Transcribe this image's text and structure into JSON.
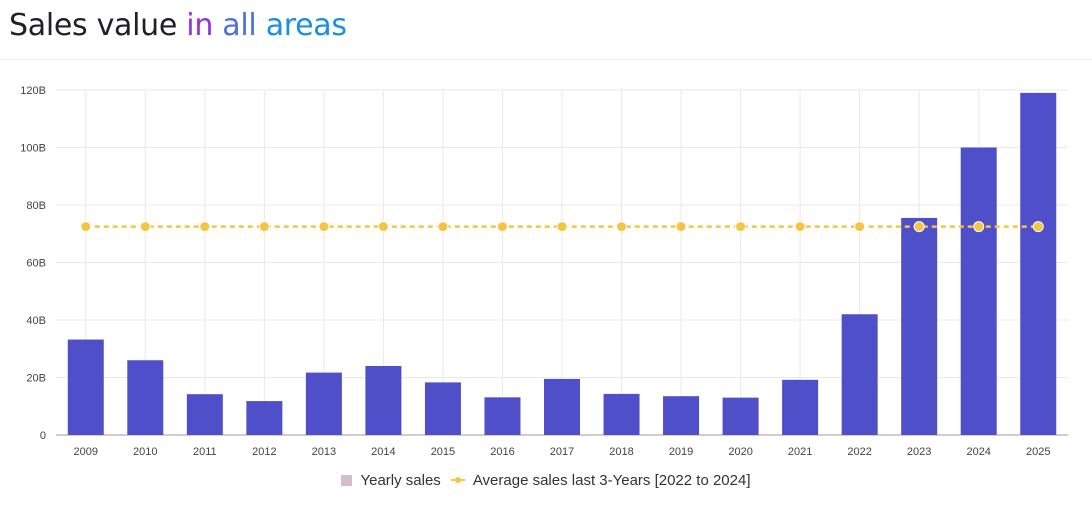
{
  "header": {
    "title_parts": [
      "Sales value",
      "in",
      "all",
      "areas"
    ]
  },
  "colors": {
    "bar": "#4f4fc9",
    "average_line": "#f4c542",
    "grid": "#e9e9e9",
    "axis": "#9e9e9e",
    "legend_bar_swatch": "#d5bccb"
  },
  "chart_data": {
    "type": "bar",
    "title": "Sales value in all areas",
    "categories": [
      "2009",
      "2010",
      "2011",
      "2012",
      "2013",
      "2014",
      "2015",
      "2016",
      "2017",
      "2018",
      "2019",
      "2020",
      "2021",
      "2022",
      "2023",
      "2024",
      "2025"
    ],
    "series": [
      {
        "name": "Yearly sales",
        "type": "bar",
        "values": [
          33.2,
          26.0,
          14.2,
          11.8,
          21.7,
          24.0,
          18.3,
          13.1,
          19.5,
          14.3,
          13.5,
          13.0,
          19.2,
          42.0,
          75.5,
          100.0,
          119.0
        ]
      },
      {
        "name": "Average sales last 3-Years [2022 to 2024]",
        "type": "line",
        "style": "dashed",
        "values": [
          72.5,
          72.5,
          72.5,
          72.5,
          72.5,
          72.5,
          72.5,
          72.5,
          72.5,
          72.5,
          72.5,
          72.5,
          72.5,
          72.5,
          72.5,
          72.5,
          72.5
        ]
      }
    ],
    "unit": "B",
    "ylim": [
      0,
      120
    ],
    "y_ticks": [
      0,
      20,
      40,
      60,
      80,
      100,
      120
    ],
    "y_tick_labels": [
      "0",
      "20B",
      "40B",
      "60B",
      "80B",
      "100B",
      "120B"
    ],
    "xlabel": "",
    "ylabel": "",
    "grid": true,
    "legend_position": "bottom-center",
    "legend": [
      "Yearly sales",
      "Average sales last 3-Years [2022 to 2024]"
    ]
  }
}
